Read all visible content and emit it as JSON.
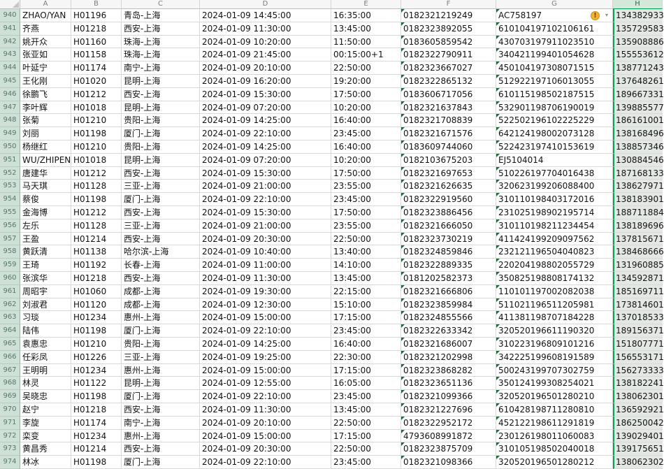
{
  "colors": {
    "selection_green": "#00a651",
    "selected_fill": "#e4e8e5",
    "row_header_fill": "#cfe0d7",
    "grid_line": "#d9d9d9",
    "text_triangle": "#1e6b3c",
    "error_icon": "#f2b233"
  },
  "icons": {
    "error_check": "!",
    "error_dropdown": "▾",
    "select_all_corner": "corner-triangle"
  },
  "sheet": {
    "columns": [
      {
        "letter": "A",
        "selected": false
      },
      {
        "letter": "B",
        "selected": false
      },
      {
        "letter": "C",
        "selected": false
      },
      {
        "letter": "D",
        "selected": false
      },
      {
        "letter": "E",
        "selected": false
      },
      {
        "letter": "F",
        "selected": false
      },
      {
        "letter": "G",
        "selected": false
      },
      {
        "letter": "H",
        "selected": true
      }
    ],
    "rows": [
      {
        "n": "940",
        "a": "ZHAO/YAN",
        "b": "H01196",
        "c": "青岛-上海",
        "d": "2024-01-09 14:45:00",
        "e": "16:35:00",
        "f": "0182321219249",
        "g": "AC758197",
        "h": "134382933",
        "err": true
      },
      {
        "n": "941",
        "a": "齐燕",
        "b": "H01218",
        "c": "西安-上海",
        "d": "2024-01-09 11:30:00",
        "e": "13:45:00",
        "f": "0182323892055",
        "g": "610104197102106161",
        "h": "135729583"
      },
      {
        "n": "942",
        "a": "姚开众",
        "b": "H01160",
        "c": "珠海-上海",
        "d": "2024-01-09 10:20:00",
        "e": "11:50:00",
        "f": "0183605859542",
        "g": "430703197911023510",
        "h": "135908886"
      },
      {
        "n": "943",
        "a": "张亚如",
        "b": "H01158",
        "c": "珠海-上海",
        "d": "2024-01-09 21:45:00",
        "e": "00:15:00+1",
        "f": "0182322790911",
        "g": "340421199401054628",
        "h": "155553612"
      },
      {
        "n": "944",
        "a": "叶延宁",
        "b": "H01174",
        "c": "南宁-上海",
        "d": "2024-01-09 20:10:00",
        "e": "22:50:00",
        "f": "0182323667027",
        "g": "450104197308071515",
        "h": "138771243"
      },
      {
        "n": "945",
        "a": "王化刚",
        "b": "H01020",
        "c": "昆明-上海",
        "d": "2024-01-09 16:20:00",
        "e": "19:20:00",
        "f": "0182322865132",
        "g": "512922197106013055",
        "h": "137648261"
      },
      {
        "n": "946",
        "a": "徐鹏飞",
        "b": "H01212",
        "c": "西安-上海",
        "d": "2024-01-09 15:30:00",
        "e": "17:50:00",
        "f": "0183606717056",
        "g": "610115198502187515",
        "h": "189667331"
      },
      {
        "n": "947",
        "a": "李叶辉",
        "b": "H01018",
        "c": "昆明-上海",
        "d": "2024-01-09 07:20:00",
        "e": "10:20:00",
        "f": "0182321637843",
        "g": "532901198706190019",
        "h": "139885577"
      },
      {
        "n": "948",
        "a": "张菊",
        "b": "H01210",
        "c": "贵阳-上海",
        "d": "2024-01-09 14:25:00",
        "e": "16:40:00",
        "f": "0182321708839",
        "g": "522502196102225229",
        "h": "186161001"
      },
      {
        "n": "949",
        "a": "刘丽",
        "b": "H01198",
        "c": "厦门-上海",
        "d": "2024-01-09 22:10:00",
        "e": "23:45:00",
        "f": "0182321671576",
        "g": "642124198002073128",
        "h": "138168496"
      },
      {
        "n": "950",
        "a": "杨继红",
        "b": "H01210",
        "c": "贵阳-上海",
        "d": "2024-01-09 14:25:00",
        "e": "16:40:00",
        "f": "0183609744060",
        "g": "522423197410153619",
        "h": "138857346"
      },
      {
        "n": "951",
        "a": "WU/ZHIPEN",
        "b": "H01018",
        "c": "昆明-上海",
        "d": "2024-01-09 07:20:00",
        "e": "10:20:00",
        "f": "0182103675203",
        "g": "EJ5104014",
        "h": "130884546"
      },
      {
        "n": "952",
        "a": "唐建华",
        "b": "H01212",
        "c": "西安-上海",
        "d": "2024-01-09 15:30:00",
        "e": "17:50:00",
        "f": "0182321697653",
        "g": "510226197704016438",
        "h": "187168133"
      },
      {
        "n": "953",
        "a": "马天琪",
        "b": "H01128",
        "c": "三亚-上海",
        "d": "2024-01-09 21:00:00",
        "e": "23:55:00",
        "f": "0182321626635",
        "g": "320623199206088400",
        "h": "138627971"
      },
      {
        "n": "954",
        "a": "蔡俊",
        "b": "H01198",
        "c": "厦门-上海",
        "d": "2024-01-09 22:10:00",
        "e": "23:45:00",
        "f": "0182322919560",
        "g": "310110198403172016",
        "h": "138183901"
      },
      {
        "n": "955",
        "a": "金海博",
        "b": "H01212",
        "c": "西安-上海",
        "d": "2024-01-09 15:30:00",
        "e": "17:50:00",
        "f": "0182323886456",
        "g": "231025198902195714",
        "h": "188711884"
      },
      {
        "n": "956",
        "a": "左乐",
        "b": "H01128",
        "c": "三亚-上海",
        "d": "2024-01-09 21:00:00",
        "e": "23:55:00",
        "f": "0182321666050",
        "g": "310110198211234454",
        "h": "138189696"
      },
      {
        "n": "957",
        "a": "王盈",
        "b": "H01214",
        "c": "西安-上海",
        "d": "2024-01-09 20:30:00",
        "e": "22:50:00",
        "f": "0182323730219",
        "g": "411424199209097562",
        "h": "137815671"
      },
      {
        "n": "958",
        "a": "黄跃清",
        "b": "H01138",
        "c": "哈尔滨-上海",
        "d": "2024-01-09 10:40:00",
        "e": "13:40:00",
        "f": "0182324859846",
        "g": "232121196504040823",
        "h": "138468666"
      },
      {
        "n": "959",
        "a": "王琦",
        "b": "H01192",
        "c": "长春-上海",
        "d": "2024-01-09 11:00:00",
        "e": "14:10:00",
        "f": "0182322889335",
        "g": "220204198802055729",
        "h": "131960885"
      },
      {
        "n": "960",
        "a": "张滨华",
        "b": "H01218",
        "c": "西安-上海",
        "d": "2024-01-09 11:30:00",
        "e": "13:45:00",
        "f": "0181202582373",
        "g": "350825198808174132",
        "h": "134592871"
      },
      {
        "n": "961",
        "a": "周昭宇",
        "b": "H01060",
        "c": "成都-上海",
        "d": "2024-01-09 19:30:00",
        "e": "22:15:00",
        "f": "0182321666806",
        "g": "110101197002082038",
        "h": "185169711"
      },
      {
        "n": "962",
        "a": "刘淑君",
        "b": "H01120",
        "c": "成都-上海",
        "d": "2024-01-09 12:30:00",
        "e": "15:10:00",
        "f": "0182323859984",
        "g": "511021196511205981",
        "h": "173814601"
      },
      {
        "n": "963",
        "a": "习琰",
        "b": "H01234",
        "c": "惠州-上海",
        "d": "2024-01-09 15:00:00",
        "e": "17:15:00",
        "f": "0182324855566",
        "g": "411381198707184228",
        "h": "137018533"
      },
      {
        "n": "964",
        "a": "陆伟",
        "b": "H01198",
        "c": "厦门-上海",
        "d": "2024-01-09 22:10:00",
        "e": "23:45:00",
        "f": "0182322633342",
        "g": "320520196611190320",
        "h": "189156371"
      },
      {
        "n": "965",
        "a": "袁惠忠",
        "b": "H01210",
        "c": "贵阳-上海",
        "d": "2024-01-09 14:25:00",
        "e": "16:40:00",
        "f": "0182321686007",
        "g": "310223196809101216",
        "h": "151807771"
      },
      {
        "n": "966",
        "a": "任彩凤",
        "b": "H01226",
        "c": "三亚-上海",
        "d": "2024-01-09 19:25:00",
        "e": "22:30:00",
        "f": "0182321202998",
        "g": "342225199608191589",
        "h": "156553171"
      },
      {
        "n": "967",
        "a": "王明明",
        "b": "H01234",
        "c": "惠州-上海",
        "d": "2024-01-09 15:00:00",
        "e": "17:15:00",
        "f": "0182323868282",
        "g": "500243199707302759",
        "h": "156273333"
      },
      {
        "n": "968",
        "a": "林灵",
        "b": "H01122",
        "c": "昆明-上海",
        "d": "2024-01-09 12:55:00",
        "e": "16:05:00",
        "f": "0182323651136",
        "g": "350124199308254021",
        "h": "138182241"
      },
      {
        "n": "969",
        "a": "吴晓忠",
        "b": "H01198",
        "c": "厦门-上海",
        "d": "2024-01-09 22:10:00",
        "e": "23:45:00",
        "f": "0182321099366",
        "g": "320520196501280210",
        "h": "138062301"
      },
      {
        "n": "970",
        "a": "赵宁",
        "b": "H01218",
        "c": "西安-上海",
        "d": "2024-01-09 11:30:00",
        "e": "13:45:00",
        "f": "0182321227696",
        "g": "610428198711280810",
        "h": "136592921"
      },
      {
        "n": "971",
        "a": "李旋",
        "b": "H01174",
        "c": "南宁-上海",
        "d": "2024-01-09 20:10:00",
        "e": "22:50:00",
        "f": "0182322952172",
        "g": "452122198611291819",
        "h": "186250042"
      },
      {
        "n": "972",
        "a": "栾变",
        "b": "H01234",
        "c": "惠州-上海",
        "d": "2024-01-09 15:00:00",
        "e": "17:15:00",
        "f": "4793608991872",
        "g": "230126198011060083",
        "h": "139029401"
      },
      {
        "n": "973",
        "a": "黄昌秀",
        "b": "H01214",
        "c": "西安-上海",
        "d": "2024-01-09 20:30:00",
        "e": "22:50:00",
        "f": "0182323875709",
        "g": "310105198502040018",
        "h": "139175651"
      },
      {
        "n": "974",
        "a": "林冰",
        "b": "H01198",
        "c": "厦门-上海",
        "d": "2024-01-09 22:10:00",
        "e": "23:45:00",
        "f": "0182321098366",
        "g": "320520196501280212",
        "h": "138062302"
      }
    ]
  }
}
